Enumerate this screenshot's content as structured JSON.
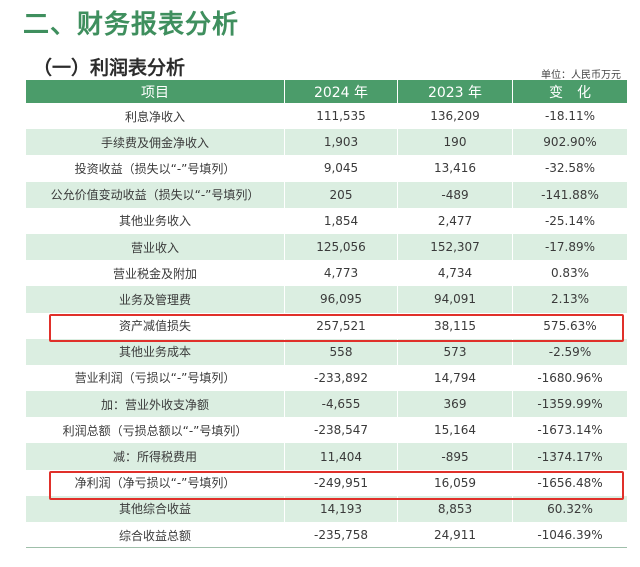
{
  "section_title": "二、财务报表分析",
  "sub_title": "（一）利润表分析",
  "unit_note": "单位：人民币万元",
  "table": {
    "headers": [
      "项目",
      "2024 年",
      "2023 年",
      "变　化"
    ],
    "rows": [
      [
        "利息净收入",
        "111,535",
        "136,209",
        "-18.11%"
      ],
      [
        "手续费及佣金净收入",
        "1,903",
        "190",
        "902.90%"
      ],
      [
        "投资收益（损失以“-”号填列）",
        "9,045",
        "13,416",
        "-32.58%"
      ],
      [
        "公允价值变动收益（损失以“-”号填列）",
        "205",
        "-489",
        "-141.88%"
      ],
      [
        "其他业务收入",
        "1,854",
        "2,477",
        "-25.14%"
      ],
      [
        "营业收入",
        "125,056",
        "152,307",
        "-17.89%"
      ],
      [
        "营业税金及附加",
        "4,773",
        "4,734",
        "0.83%"
      ],
      [
        "业务及管理费",
        "96,095",
        "94,091",
        "2.13%"
      ],
      [
        "资产减值损失",
        "257,521",
        "38,115",
        "575.63%"
      ],
      [
        "其他业务成本",
        "558",
        "573",
        "-2.59%"
      ],
      [
        "营业利润（亏损以“-”号填列）",
        "-233,892",
        "14,794",
        "-1680.96%"
      ],
      [
        "加：营业外收支净额",
        "-4,655",
        "369",
        "-1359.99%"
      ],
      [
        "利润总额（亏损总额以“-”号填列）",
        "-238,547",
        "15,164",
        "-1673.14%"
      ],
      [
        "减：所得税费用",
        "11,404",
        "-895",
        "-1374.17%"
      ],
      [
        "净利润（净亏损以“-”号填列）",
        "-249,951",
        "16,059",
        "-1656.48%"
      ],
      [
        "其他综合收益",
        "14,193",
        "8,853",
        "60.32%"
      ],
      [
        "综合收益总额",
        "-235,758",
        "24,911",
        "-1046.39%"
      ]
    ]
  },
  "colors": {
    "header_bg": "#4b9c6a",
    "shaded_row": "#dbeee1",
    "title_green": "#3f8f5e",
    "highlight_red": "#e0302a"
  },
  "highlighted_rows": [
    "资产减值损失",
    "净利润（净亏损以“-”号填列）"
  ]
}
